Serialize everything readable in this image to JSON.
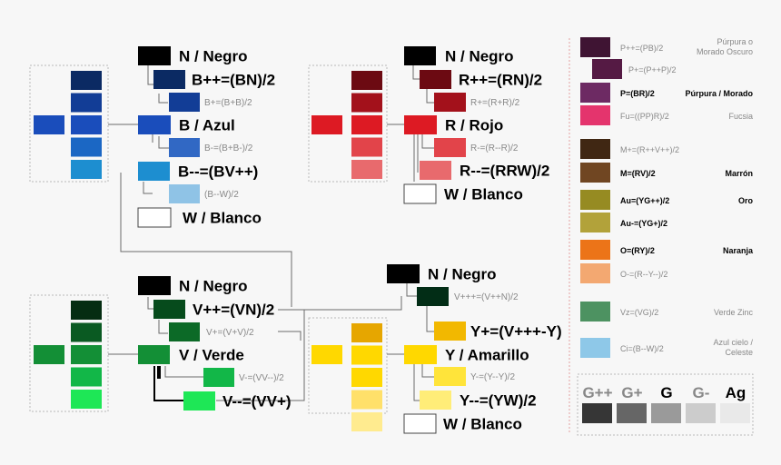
{
  "blue": {
    "nodes": [
      {
        "label": "N / Negro",
        "color": "#000000"
      },
      {
        "label": "B++=(BN)/2",
        "color": "#0b2a63"
      },
      {
        "label": "B+=(B+B)/2",
        "color": "#123d96"
      },
      {
        "label": "B / Azul",
        "color": "#1a4dbb"
      },
      {
        "label": "B-=(B+B-)/2",
        "color": "#3168c4"
      },
      {
        "label": "B--=(BV++)",
        "color": "#1d8ed0"
      },
      {
        "label": "(B--W)/2",
        "color": "#8fc3e6"
      },
      {
        "label": "W / Blanco",
        "color": "#ffffff"
      }
    ],
    "palette": [
      "#0b2a63",
      "#123d96",
      "#1a4dbb",
      "#1b67c4",
      "#1d8ed0"
    ]
  },
  "red": {
    "nodes": [
      {
        "label": "N / Negro",
        "color": "#000000"
      },
      {
        "label": "R++=(RN)/2",
        "color": "#6c0a12"
      },
      {
        "label": "R+=(R+R)/2",
        "color": "#a3111b"
      },
      {
        "label": "R / Rojo",
        "color": "#dd1a23"
      },
      {
        "label": "R-=(R--R)/2",
        "color": "#e2444a"
      },
      {
        "label": "R--=(RRW)/2",
        "color": "#e86a6d"
      },
      {
        "label": "W / Blanco",
        "color": "#ffffff"
      }
    ],
    "palette": [
      "#6c0a12",
      "#a3111b",
      "#dd1a23",
      "#e2444a",
      "#e86a6d"
    ]
  },
  "green": {
    "nodes": [
      {
        "label": "N / Negro",
        "color": "#000000"
      },
      {
        "label": "V++=(VN)/2",
        "color": "#064b1c"
      },
      {
        "label": "V+=(V+V)/2",
        "color": "#0c6a27"
      },
      {
        "label": "V / Verde",
        "color": "#138f36"
      },
      {
        "label": "V-=(VV--)/2",
        "color": "#12b748"
      },
      {
        "label": "V--=(VV+)",
        "color": "#1ee756"
      }
    ],
    "palette": [
      "#052d12",
      "#0a5a22",
      "#138f36",
      "#12b748",
      "#1ee756"
    ]
  },
  "yellow": {
    "nodes": [
      {
        "label": "N / Negro",
        "color": "#000000"
      },
      {
        "label": "V+++=(V++N)/2",
        "color": "#022d16"
      },
      {
        "label": "Y+=(V+++-Y)",
        "color": "#f2b800"
      },
      {
        "label": "Y / Amarillo",
        "color": "#ffd800"
      },
      {
        "label": "Y-=(Y--Y)/2",
        "color": "#ffe43a"
      },
      {
        "label": "Y--=(YW)/2",
        "color": "#ffed78"
      },
      {
        "label": "W / Blanco",
        "color": "#ffffff"
      }
    ],
    "palette": [
      "#e6a600",
      "#ffd800",
      "#ffd800",
      "#ffe06a",
      "#ffeb8f"
    ]
  },
  "legend": [
    {
      "formula": "P++=(PB)/2",
      "name": "Púrpura o Morado Oscuro",
      "color": "#3f1433",
      "bold": false
    },
    {
      "formula": "P+=(P++P)/2",
      "name": "",
      "color": "#551a44",
      "bold": false
    },
    {
      "formula": "P=(BR)/2",
      "name": "Púrpura / Morado",
      "color": "#6d2a63",
      "bold": true
    },
    {
      "formula": "Fu=((PP)R)/2",
      "name": "Fucsia",
      "color": "#e4346d",
      "bold": false
    },
    {
      "formula": "M+=(R++V++)/2",
      "name": "",
      "color": "#402713",
      "bold": false
    },
    {
      "formula": "M=(RV)/2",
      "name": "Marrón",
      "color": "#704622",
      "bold": true
    },
    {
      "formula": "Au=(YG++)/2",
      "name": "Oro",
      "color": "#968b22",
      "bold": true
    },
    {
      "formula": "Au-=(YG+)/2",
      "name": "",
      "color": "#b2a23a",
      "bold": true
    },
    {
      "formula": "O=(RY)/2",
      "name": "Naranja",
      "color": "#ec7418",
      "bold": true
    },
    {
      "formula": "O-=(R--Y--)/2",
      "name": "",
      "color": "#f3a871",
      "bold": false
    },
    {
      "formula": "Vz=(VG)/2",
      "name": "Verde Zinc",
      "color": "#4d9261",
      "bold": false
    },
    {
      "formula": "Ci=(B--W)/2",
      "name": "Azul cielo / Celeste",
      "color": "#8ec8e8",
      "bold": false
    }
  ],
  "grays": [
    {
      "label": "G++",
      "color": "#363636"
    },
    {
      "label": "G+",
      "color": "#666666"
    },
    {
      "label": "G",
      "color": "#9a9a9a"
    },
    {
      "label": "G-",
      "color": "#cccccc"
    },
    {
      "label": "Ag",
      "color": "#e9e9e9"
    }
  ]
}
